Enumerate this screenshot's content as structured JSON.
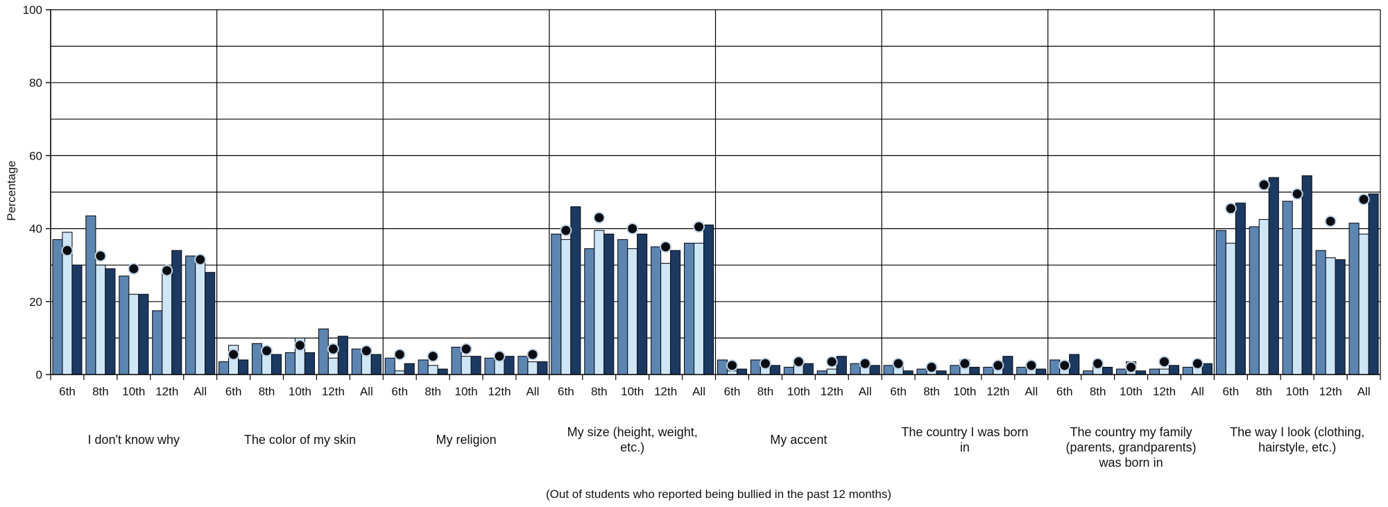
{
  "chart_data": {
    "type": "bar",
    "ylabel": "Percentage",
    "xlabel": "(Out of students who reported being bullied in the past 12 months)",
    "ylim": [
      0,
      100
    ],
    "yticks": [
      "0",
      "20",
      "40",
      "60",
      "80",
      "100"
    ],
    "grid": true,
    "grades": [
      "6th",
      "8th",
      "10th",
      "12th",
      "All"
    ],
    "colors": {
      "series1": "#5d85b1",
      "series2": "#cfe6f6",
      "series3": "#1c3a61",
      "marker": "#0b0b12",
      "marker_ring": "#bcd2e5"
    },
    "groups": [
      {
        "label_lines": [
          "I don't know why"
        ],
        "bars": [
          [
            37,
            39,
            30
          ],
          [
            43.5,
            30,
            29
          ],
          [
            27,
            22,
            22
          ],
          [
            17.5,
            28,
            34
          ],
          [
            32.5,
            31,
            28
          ]
        ],
        "markers": [
          34,
          32.5,
          29,
          28.5,
          31.5
        ]
      },
      {
        "label_lines": [
          "The color of my skin"
        ],
        "bars": [
          [
            3.5,
            8,
            4
          ],
          [
            8.5,
            7,
            5.5
          ],
          [
            6,
            10,
            6
          ],
          [
            12.5,
            4.5,
            10.5
          ],
          [
            7,
            6,
            5.5
          ]
        ],
        "markers": [
          5.5,
          6.5,
          8,
          7,
          6.5
        ]
      },
      {
        "label_lines": [
          "My religion"
        ],
        "bars": [
          [
            4.5,
            1,
            3
          ],
          [
            4,
            2.5,
            1.5
          ],
          [
            7.5,
            5,
            5
          ],
          [
            4.5,
            5,
            5
          ],
          [
            5,
            3.5,
            3.5
          ]
        ],
        "markers": [
          5.5,
          5,
          7,
          5,
          5.5
        ]
      },
      {
        "label_lines": [
          "My size (height, weight,",
          "etc.)"
        ],
        "bars": [
          [
            38.5,
            37,
            46
          ],
          [
            34.5,
            39.5,
            38.5
          ],
          [
            37,
            34.5,
            38.5
          ],
          [
            35,
            30.5,
            34
          ],
          [
            36,
            36,
            41
          ]
        ],
        "markers": [
          39.5,
          43,
          40,
          35,
          40.5
        ]
      },
      {
        "label_lines": [
          "My accent"
        ],
        "bars": [
          [
            4,
            1,
            1.5
          ],
          [
            4,
            3.5,
            2.5
          ],
          [
            2,
            3.5,
            3
          ],
          [
            1,
            1.5,
            5
          ],
          [
            3,
            2,
            2.5
          ]
        ],
        "markers": [
          2.5,
          3,
          3.5,
          3.5,
          3
        ]
      },
      {
        "label_lines": [
          "The country I was born",
          "in"
        ],
        "bars": [
          [
            2.5,
            2.5,
            1
          ],
          [
            1.5,
            2.5,
            1
          ],
          [
            2.5,
            4,
            2
          ],
          [
            2,
            2,
            5
          ],
          [
            2,
            2.5,
            1.5
          ]
        ],
        "markers": [
          3,
          2,
          3,
          2.5,
          2.5
        ]
      },
      {
        "label_lines": [
          "The country my family",
          "(parents, grandparents)",
          "was born in"
        ],
        "bars": [
          [
            4,
            3,
            5.5
          ],
          [
            1,
            2.5,
            2
          ],
          [
            1.5,
            3.5,
            1
          ],
          [
            1.5,
            1.5,
            2.5
          ],
          [
            2,
            2,
            3
          ]
        ],
        "markers": [
          2.5,
          3,
          2,
          3.5,
          3
        ]
      },
      {
        "label_lines": [
          "The way I look (clothing,",
          "hairstyle, etc.)"
        ],
        "bars": [
          [
            39.5,
            36,
            47
          ],
          [
            40.5,
            42.5,
            54
          ],
          [
            47.5,
            40,
            54.5
          ],
          [
            34,
            32,
            31.5
          ],
          [
            41.5,
            38.5,
            49.5
          ]
        ],
        "markers": [
          45.5,
          52,
          49.5,
          42,
          48
        ]
      }
    ]
  }
}
